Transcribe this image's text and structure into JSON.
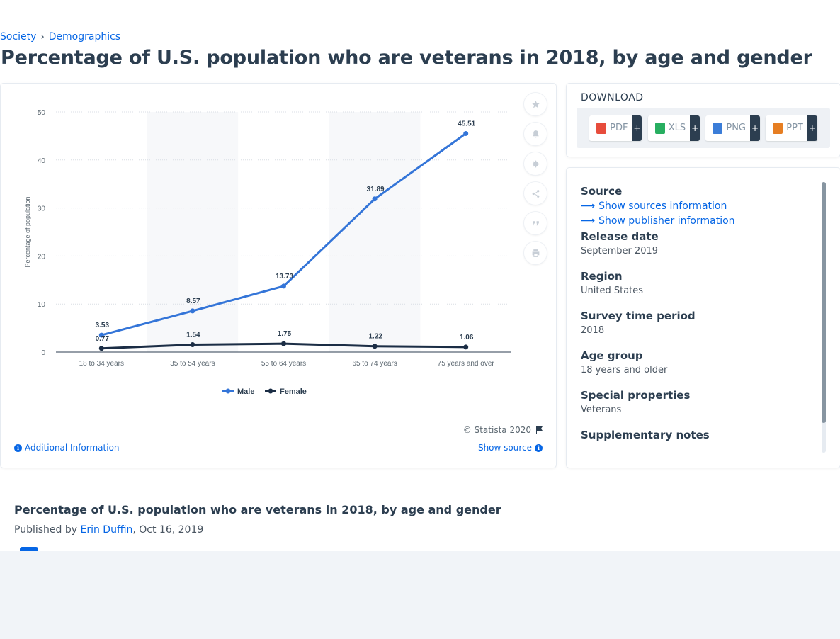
{
  "breadcrumb": {
    "items": [
      "Society",
      "Demographics"
    ],
    "separator": "›"
  },
  "page_title": "Percentage of U.S. population who are veterans in 2018, by age and gender",
  "chart_tools": [
    "star-icon",
    "bell-icon",
    "gear-icon",
    "share-icon",
    "quote-icon",
    "print-icon"
  ],
  "chart_footer": {
    "copyright": "© Statista 2020",
    "additional_info": "Additional Information",
    "show_source": "Show source"
  },
  "download": {
    "heading": "DOWNLOAD",
    "formats": [
      {
        "label": "PDF",
        "color": "#e74c3c"
      },
      {
        "label": "XLS",
        "color": "#27ae60"
      },
      {
        "label": "PNG",
        "color": "#3b7dd8"
      },
      {
        "label": "PPT",
        "color": "#e67e22"
      }
    ],
    "plus": "+"
  },
  "info": {
    "source_label": "Source",
    "show_sources": "Show sources information",
    "show_publisher": "Show publisher information",
    "fields": [
      {
        "label": "Release date",
        "value": "September 2019"
      },
      {
        "label": "Region",
        "value": "United States"
      },
      {
        "label": "Survey time period",
        "value": "2018"
      },
      {
        "label": "Age group",
        "value": "18 years and older"
      },
      {
        "label": "Special properties",
        "value": "Veterans"
      },
      {
        "label": "Supplementary notes",
        "value": ""
      }
    ]
  },
  "summary": {
    "title": "Percentage of U.S. population who are veterans in 2018, by age and gender",
    "published_by": "Published by",
    "author": "Erin Duffin",
    "date": ", Oct 16, 2019"
  },
  "chart_data": {
    "type": "line",
    "categories": [
      "18 to 34 years",
      "35 to 54 years",
      "55 to 64 years",
      "65 to 74 years",
      "75 years and over"
    ],
    "series": [
      {
        "name": "Male",
        "color": "#3475d8",
        "values": [
          3.53,
          8.57,
          13.73,
          31.89,
          45.51
        ]
      },
      {
        "name": "Female",
        "color": "#1b2d45",
        "values": [
          0.77,
          1.54,
          1.75,
          1.22,
          1.06
        ]
      }
    ],
    "ylabel": "Percentage of population",
    "ylim": [
      0,
      50
    ],
    "yticks": [
      0,
      10,
      20,
      30,
      40,
      50
    ],
    "grid": true,
    "legend": "bottom"
  }
}
